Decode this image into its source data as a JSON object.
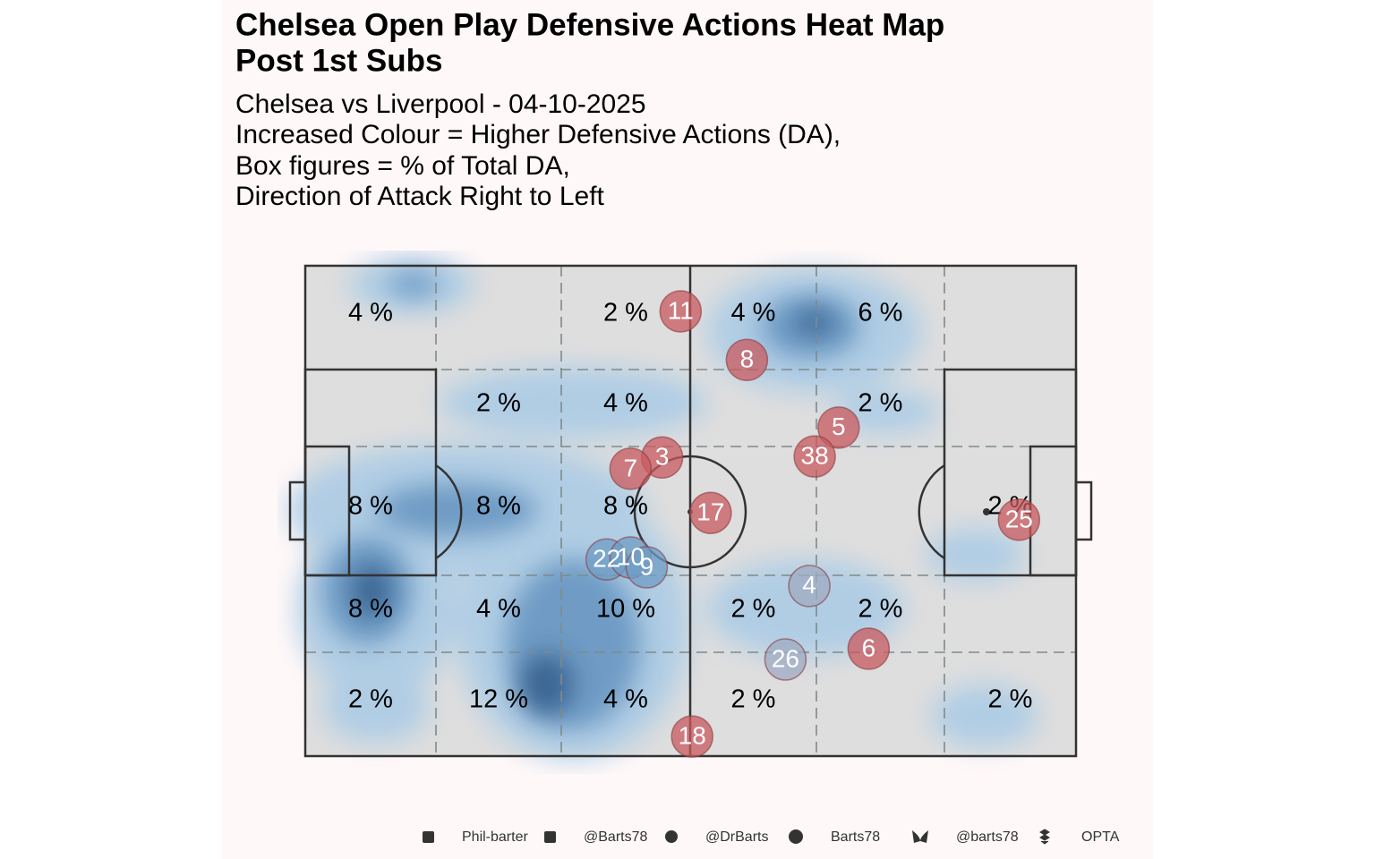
{
  "chart_data": {
    "type": "heatmap",
    "title": [
      "Chelsea Open Play Defensive Actions Heat Map",
      "Post 1st Subs"
    ],
    "subtitle": [
      "Chelsea vs Liverpool - 04-10-2025",
      "Increased Colour = Higher Defensive Actions (DA),",
      "Box figures = % of Total DA,",
      "Direction of Attack Right to Left"
    ],
    "xlim": [
      0,
      100
    ],
    "ylim": [
      0,
      100
    ],
    "zones": {
      "values": [
        [
          4,
          null,
          2,
          4,
          6,
          null
        ],
        [
          null,
          2,
          4,
          null,
          2,
          null
        ],
        [
          8,
          8,
          8,
          null,
          null,
          2
        ],
        [
          8,
          4,
          10,
          2,
          2,
          null
        ],
        [
          2,
          12,
          4,
          2,
          null,
          2
        ]
      ],
      "value_labels": [
        [
          "4 %",
          null,
          "2 %",
          "4 %",
          "6 %",
          null
        ],
        [
          null,
          "2 %",
          "4 %",
          null,
          "2 %",
          null
        ],
        [
          "8 %",
          "8 %",
          "8 %",
          null,
          null,
          "2 %"
        ],
        [
          "8 %",
          "4 %",
          "10 %",
          "2 %",
          "2 %",
          null
        ],
        [
          "2 %",
          "12 %",
          "4 %",
          "2 %",
          null,
          "2 %"
        ]
      ]
    },
    "players": [
      {
        "name": "11",
        "x": 48.7,
        "y": 9.3,
        "color": "#c85a5f"
      },
      {
        "name": "8",
        "x": 57.3,
        "y": 19.2,
        "color": "#c85a5f"
      },
      {
        "name": "5",
        "x": 69.2,
        "y": 33.0,
        "color": "#c85a5f"
      },
      {
        "name": "38",
        "x": 66.1,
        "y": 38.9,
        "color": "#c85a5f"
      },
      {
        "name": "3",
        "x": 46.3,
        "y": 39.1,
        "color": "#c85a5f"
      },
      {
        "name": "7",
        "x": 42.2,
        "y": 41.4,
        "color": "#c85a5f"
      },
      {
        "name": "17",
        "x": 52.6,
        "y": 50.4,
        "color": "#c85a5f"
      },
      {
        "name": "25",
        "x": 92.6,
        "y": 51.8,
        "color": "#c85a5f"
      },
      {
        "name": "22",
        "x": 39.1,
        "y": 59.9,
        "color": "#6f9cc4"
      },
      {
        "name": "10",
        "x": 42.2,
        "y": 59.5,
        "color": "#6f9cc4"
      },
      {
        "name": "9",
        "x": 44.3,
        "y": 61.5,
        "color": "#6f9cc4"
      },
      {
        "name": "4",
        "x": 65.4,
        "y": 65.3,
        "color": "#9fa9c2"
      },
      {
        "name": "6",
        "x": 73.1,
        "y": 78.1,
        "color": "#c85a5f"
      },
      {
        "name": "26",
        "x": 62.3,
        "y": 80.3,
        "color": "#9fa9c2"
      },
      {
        "name": "18",
        "x": 50.2,
        "y": 96.0,
        "color": "#c85a5f"
      }
    ],
    "footer": [
      "Phil-barter",
      "@Barts78",
      "@DrBarts",
      "Barts78",
      "@barts78",
      "OPTA"
    ]
  }
}
